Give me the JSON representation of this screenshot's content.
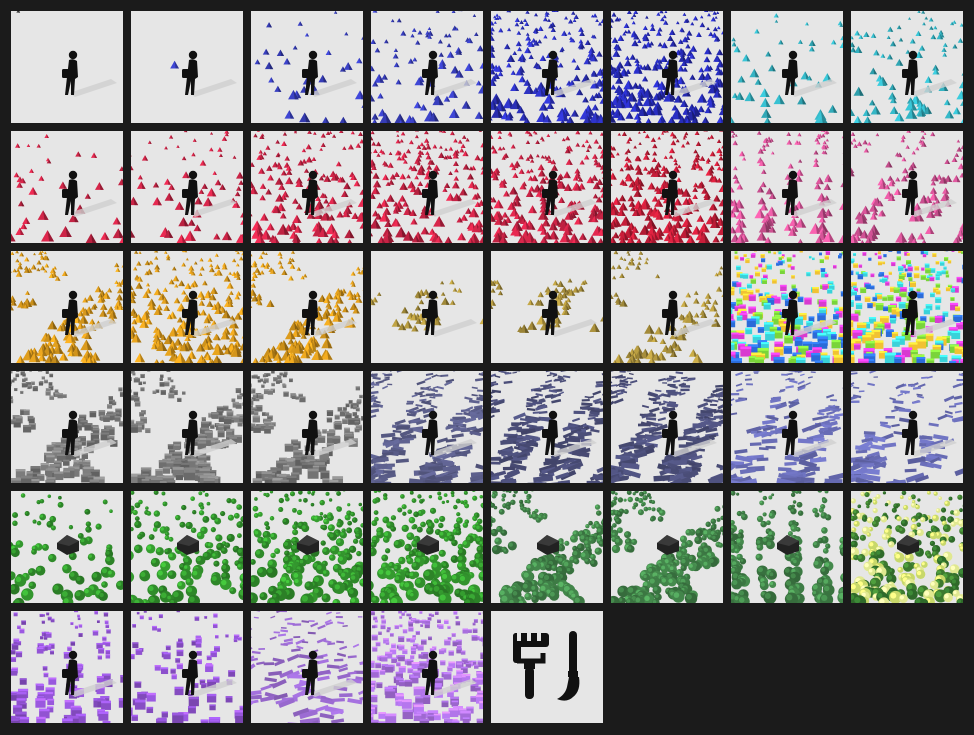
{
  "app": {
    "background": "#1b1b1b",
    "tile_background": "#e6e6e6"
  },
  "presets": [
    {
      "id": 1,
      "color": "#3a3a3a",
      "shape": "cone",
      "density": 0.0,
      "subject": "walker",
      "pattern": "random"
    },
    {
      "id": 2,
      "color": "#3b42c8",
      "shape": "cone",
      "density": 0.01,
      "subject": "walker",
      "pattern": "random"
    },
    {
      "id": 3,
      "color": "#3b42c8",
      "shape": "cone",
      "density": 0.1,
      "subject": "walker",
      "pattern": "random"
    },
    {
      "id": 4,
      "color": "#3b42c8",
      "shape": "cone",
      "density": 0.3,
      "subject": "walker",
      "pattern": "random"
    },
    {
      "id": 5,
      "color": "#2f34c9",
      "shape": "cone",
      "density": 0.7,
      "subject": "walker",
      "pattern": "random"
    },
    {
      "id": 6,
      "color": "#2a2fc6",
      "shape": "cone",
      "density": 0.95,
      "subject": "walker",
      "pattern": "random"
    },
    {
      "id": 7,
      "color": "#35b8c8",
      "shape": "cone",
      "density": 0.15,
      "subject": "walker",
      "pattern": "random"
    },
    {
      "id": 8,
      "color": "#35b8c8",
      "shape": "cone",
      "density": 0.3,
      "subject": "walker",
      "pattern": "random"
    },
    {
      "id": 9,
      "color": "#d6264a",
      "shape": "cone",
      "density": 0.12,
      "subject": "walker",
      "pattern": "random"
    },
    {
      "id": 10,
      "color": "#d6264a",
      "shape": "cone",
      "density": 0.22,
      "subject": "walker",
      "pattern": "random"
    },
    {
      "id": 11,
      "color": "#d6264a",
      "shape": "cone",
      "density": 0.55,
      "subject": "walker",
      "pattern": "random"
    },
    {
      "id": 12,
      "color": "#d6264a",
      "shape": "cone",
      "density": 0.75,
      "subject": "walker",
      "pattern": "random"
    },
    {
      "id": 13,
      "color": "#d6264a",
      "shape": "cone",
      "density": 0.85,
      "subject": "walker",
      "pattern": "random"
    },
    {
      "id": 14,
      "color": "#d01f3c",
      "shape": "cone",
      "density": 0.95,
      "subject": "walker",
      "pattern": "random"
    },
    {
      "id": 15,
      "color": "#e0589f",
      "shape": "cone",
      "density": 0.5,
      "subject": "walker",
      "pattern": "stripes"
    },
    {
      "id": 16,
      "color": "#e0589f",
      "shape": "cone",
      "density": 0.45,
      "subject": "walker",
      "pattern": "waves"
    },
    {
      "id": 17,
      "color": "#e5a21e",
      "shape": "cone",
      "density": 0.55,
      "subject": "walker",
      "pattern": "clusters"
    },
    {
      "id": 18,
      "color": "#e5a21e",
      "shape": "cone",
      "density": 0.85,
      "subject": "walker",
      "pattern": "random"
    },
    {
      "id": 19,
      "color": "#e5a21e",
      "shape": "cone",
      "density": 0.6,
      "subject": "walker",
      "pattern": "clusters"
    },
    {
      "id": 20,
      "color": "#b59a40",
      "shape": "cone",
      "density": 0.2,
      "subject": "walker",
      "pattern": "band"
    },
    {
      "id": 21,
      "color": "#b59a40",
      "shape": "cone",
      "density": 0.3,
      "subject": "walker",
      "pattern": "band"
    },
    {
      "id": 22,
      "color": "#b59a40",
      "shape": "cone",
      "density": 0.35,
      "subject": "walker",
      "pattern": "clusters"
    },
    {
      "id": 23,
      "color": "#48d18a",
      "shape": "block",
      "density": 0.95,
      "subject": "walker",
      "pattern": "multicolor",
      "palette": [
        "#f1c232",
        "#3ad2d9",
        "#7ad43a",
        "#2b6bd8",
        "#d83ad0"
      ]
    },
    {
      "id": 24,
      "color": "#3ad2d9",
      "shape": "block",
      "density": 0.95,
      "subject": "walker",
      "pattern": "multicolor",
      "palette": [
        "#3ad2d9",
        "#f1c232",
        "#7ad43a",
        "#d83ad0",
        "#2b6bd8"
      ]
    },
    {
      "id": 25,
      "color": "#6f6f6f",
      "shape": "block",
      "density": 0.65,
      "subject": "walker",
      "pattern": "clusters"
    },
    {
      "id": 26,
      "color": "#6f6f6f",
      "shape": "block",
      "density": 0.7,
      "subject": "walker",
      "pattern": "clusters"
    },
    {
      "id": 27,
      "color": "#6f6f6f",
      "shape": "block",
      "density": 0.65,
      "subject": "walker",
      "pattern": "clusters"
    },
    {
      "id": 28,
      "color": "#5b5e8a",
      "shape": "plank",
      "density": 0.85,
      "subject": "walker",
      "pattern": "waves"
    },
    {
      "id": 29,
      "color": "#4c4f7a",
      "shape": "plank",
      "density": 0.9,
      "subject": "walker",
      "pattern": "waves"
    },
    {
      "id": 30,
      "color": "#4c4f7a",
      "shape": "plank",
      "density": 0.95,
      "subject": "walker",
      "pattern": "waves"
    },
    {
      "id": 31,
      "color": "#6a6eb8",
      "shape": "plank",
      "density": 0.55,
      "subject": "walker",
      "pattern": "waves"
    },
    {
      "id": 32,
      "color": "#6a6eb8",
      "shape": "plank",
      "density": 0.45,
      "subject": "walker",
      "pattern": "waves"
    },
    {
      "id": 33,
      "color": "#2f8a2a",
      "shape": "tree",
      "density": 0.25,
      "subject": "house",
      "pattern": "random"
    },
    {
      "id": 34,
      "color": "#2f8a2a",
      "shape": "tree",
      "density": 0.5,
      "subject": "house",
      "pattern": "random"
    },
    {
      "id": 35,
      "color": "#2f8a2a",
      "shape": "tree",
      "density": 0.7,
      "subject": "house",
      "pattern": "random"
    },
    {
      "id": 36,
      "color": "#2f8a2a",
      "shape": "tree",
      "density": 0.8,
      "subject": "house",
      "pattern": "random"
    },
    {
      "id": 37,
      "color": "#3d7a44",
      "shape": "tree",
      "density": 0.7,
      "subject": "house",
      "pattern": "clusters"
    },
    {
      "id": 38,
      "color": "#3d7a44",
      "shape": "tree",
      "density": 0.75,
      "subject": "house",
      "pattern": "clusters"
    },
    {
      "id": 39,
      "color": "#3d7a44",
      "shape": "tree",
      "density": 0.6,
      "subject": "house",
      "pattern": "stripes"
    },
    {
      "id": 40,
      "color": "#5a8f2f",
      "shape": "tree",
      "density": 0.95,
      "subject": "house",
      "pattern": "multicolor",
      "palette": [
        "#3d7a2f",
        "#c8d86a",
        "#2f6a2a",
        "#e0e890"
      ]
    },
    {
      "id": 41,
      "color": "#8a4fc8",
      "shape": "block",
      "density": 0.45,
      "subject": "walker",
      "pattern": "stripes"
    },
    {
      "id": 42,
      "color": "#8a4fc8",
      "shape": "block",
      "density": 0.3,
      "subject": "walker",
      "pattern": "random"
    },
    {
      "id": 43,
      "color": "#9a6ad0",
      "shape": "plank",
      "density": 0.45,
      "subject": "walker",
      "pattern": "random"
    },
    {
      "id": 44,
      "color": "#a46cd8",
      "shape": "block",
      "density": 0.9,
      "subject": "walker",
      "pattern": "random"
    }
  ],
  "tools": [
    {
      "id": "paint-brush-tool",
      "icon": "paint-roller-and-brush-icon",
      "color": "#111111"
    }
  ]
}
